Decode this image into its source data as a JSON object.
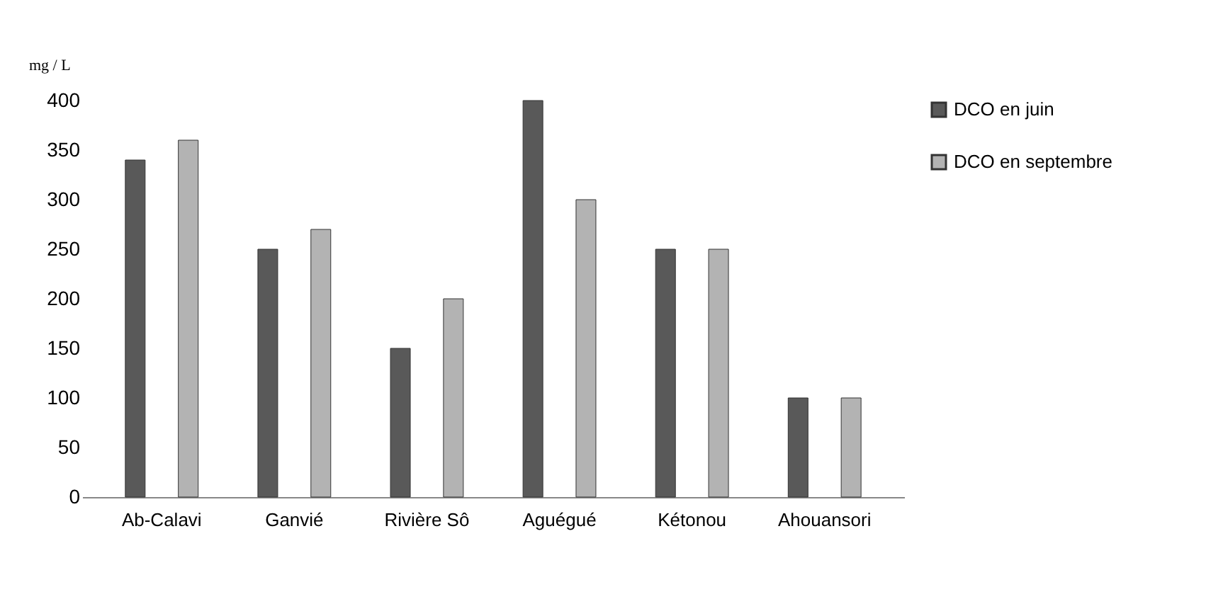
{
  "chart_data": {
    "type": "bar",
    "ylabel": "mg / L",
    "categories": [
      "Ab-Calavi",
      "Ganvié",
      "Rivière Sô",
      "Aguégué",
      "Kétonou",
      "Ahouansori"
    ],
    "series": [
      {
        "name": "DCO en juin",
        "color": "#595959",
        "values": [
          340,
          250,
          150,
          400,
          250,
          100
        ]
      },
      {
        "name": "DCO en septembre",
        "color": "#b3b3b3",
        "values": [
          360,
          270,
          200,
          300,
          250,
          100
        ]
      }
    ],
    "ylim": [
      0,
      400
    ],
    "yticks": [
      0,
      50,
      100,
      150,
      200,
      250,
      300,
      350,
      400
    ],
    "grid": false,
    "legend": "right"
  }
}
